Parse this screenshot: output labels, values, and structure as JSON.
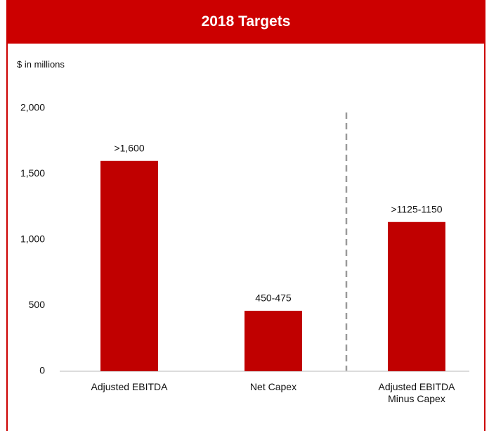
{
  "chart_data": {
    "type": "bar",
    "title": "2018 Targets",
    "subtitle": "$ in millions",
    "categories": [
      "Adjusted EBITDA",
      "Net Capex",
      "Adjusted EBITDA Minus Capex"
    ],
    "values": [
      1600,
      460,
      1135
    ],
    "value_labels": [
      ">1,600",
      "450-475",
      ">1125-1150"
    ],
    "color": "#c00000",
    "ylim": [
      0,
      2000
    ],
    "yticks": [
      0,
      500,
      {
        "value": 1000,
        "label": "1,000"
      },
      {
        "value": 1500,
        "label": "1,500"
      },
      {
        "value": 2000,
        "label": "2,000"
      }
    ],
    "grid": false
  }
}
